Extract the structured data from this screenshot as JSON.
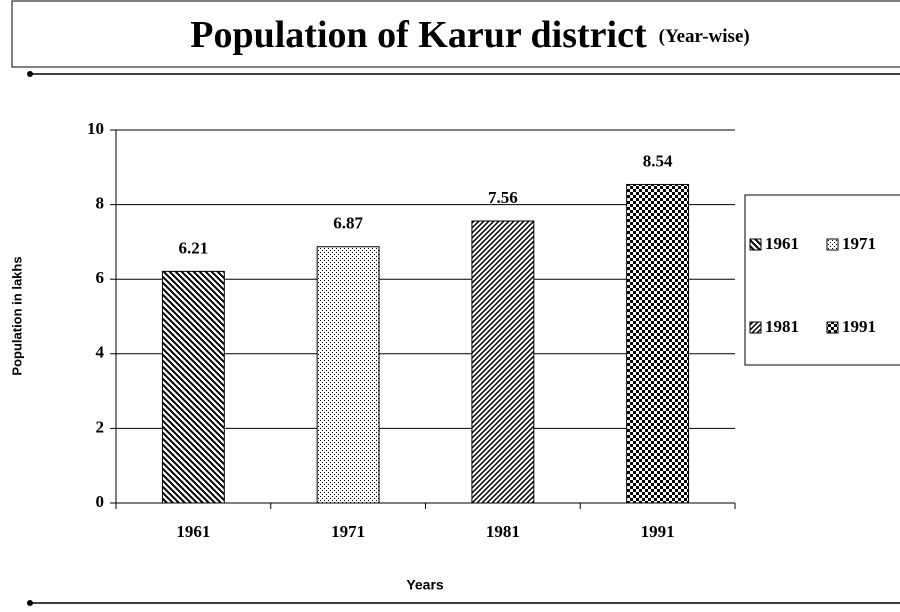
{
  "chart_data": {
    "type": "bar",
    "title": "Population of Karur district",
    "subtitle": "(Year-wise)",
    "categories": [
      "1961",
      "1971",
      "1981",
      "1991"
    ],
    "values": [
      6.21,
      6.87,
      7.56,
      8.54
    ],
    "color": "#000000",
    "ylim": [
      0,
      10
    ],
    "yticks": [
      0,
      2,
      4,
      6,
      8,
      10
    ],
    "grid": true,
    "x_label": "Years",
    "y_label": "Population in lakhs",
    "legend": "right"
  }
}
